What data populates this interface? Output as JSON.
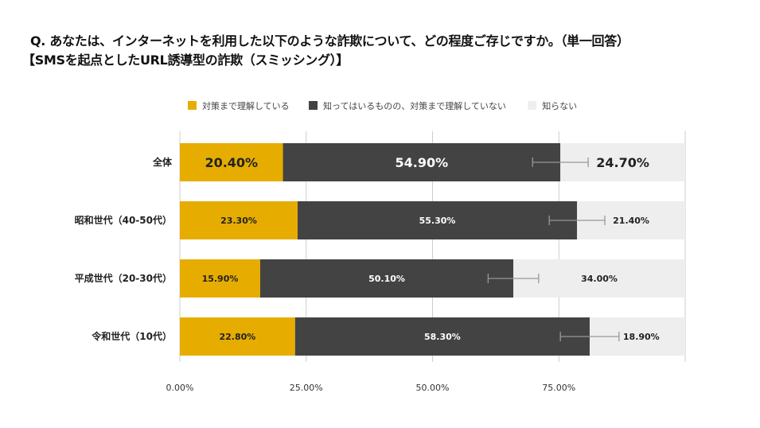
{
  "chart_data": {
    "type": "bar",
    "orientation": "horizontal",
    "stacked": true,
    "title": "Q. あなたは、インターネットを利用した以下のような詐欺について、どの程度ご存じですか。（単一回答）",
    "subtitle": "【SMSを起点としたURL誘導型の詐欺（スミッシング）】",
    "categories": [
      "全体",
      "昭和世代（40-50代）",
      "平成世代（20-30代）",
      "令和世代（10代）"
    ],
    "series": [
      {
        "name": "対策まで理解している",
        "color": "#E6AD00",
        "values": [
          20.4,
          23.3,
          15.9,
          22.8
        ],
        "labels": [
          "20.40%",
          "23.30%",
          "15.90%",
          "22.80%"
        ]
      },
      {
        "name": "知ってはいるものの、対策まで理解していない",
        "color": "#434343",
        "values": [
          54.9,
          55.3,
          50.1,
          58.3
        ],
        "labels": [
          "54.90%",
          "55.30%",
          "50.10%",
          "58.30%"
        ]
      },
      {
        "name": "知らない",
        "color": "#EEEEEE",
        "values": [
          24.7,
          21.4,
          34.0,
          18.9
        ],
        "labels": [
          "24.70%",
          "21.40%",
          "34.00%",
          "18.90%"
        ]
      }
    ],
    "error_bars": {
      "series": 1,
      "plus_minus": [
        5.5,
        5.5,
        5.0,
        5.8
      ]
    },
    "xlim": [
      0,
      100
    ],
    "xticks": [
      0,
      25,
      50,
      75
    ],
    "xtick_labels": [
      "0.00%",
      "25.00%",
      "50.00%",
      "75.00%"
    ],
    "grid": true,
    "legend": "top"
  }
}
